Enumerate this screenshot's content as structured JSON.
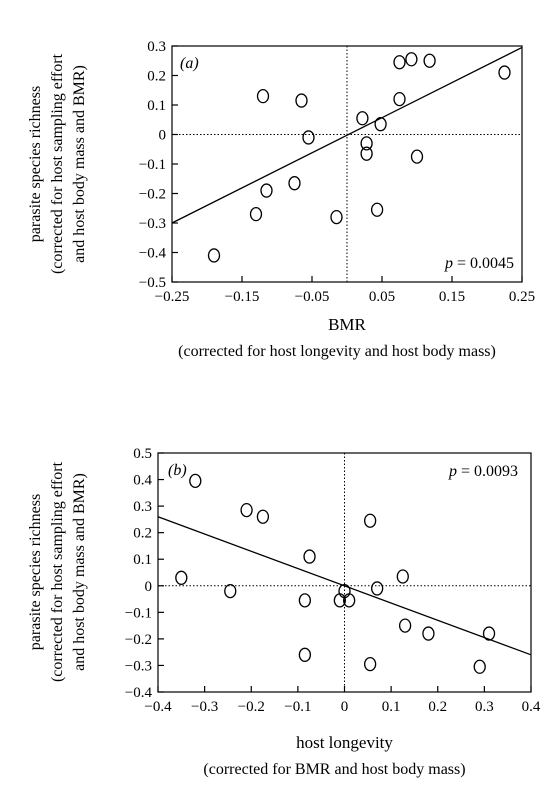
{
  "chart_data": [
    {
      "type": "scatter",
      "panel_label": "(a)",
      "p_label": "p",
      "p_value": "= 0.0045",
      "ylabel_lines": [
        "parasite species richness",
        "(corrected for host sampling effort",
        "and host body mass and BMR)"
      ],
      "xlabel": "BMR",
      "xlabel_sub": "(corrected for host longevity and host body mass)",
      "xlim": [
        -0.25,
        0.25
      ],
      "ylim": [
        -0.5,
        0.3
      ],
      "xticks": [
        -0.25,
        -0.15,
        -0.05,
        0.05,
        0.15,
        0.25
      ],
      "xtick_labels": [
        "−0.25",
        "−0.15",
        "−0.05",
        "0.05",
        "0.15",
        "0.25"
      ],
      "yticks": [
        0.3,
        0.2,
        0.1,
        0,
        -0.1,
        -0.2,
        -0.3,
        -0.4,
        -0.5
      ],
      "ytick_labels": [
        "0.3",
        "0.2",
        "0.1",
        "0",
        "−0.1",
        "−0.2",
        "−0.3",
        "−0.4",
        "−0.5"
      ],
      "x_ref": 0,
      "y_ref": 0,
      "fit_line": {
        "x": [
          -0.25,
          0.25
        ],
        "y": [
          -0.3,
          0.295
        ]
      },
      "points": [
        {
          "x": -0.19,
          "y": -0.41
        },
        {
          "x": -0.13,
          "y": -0.27
        },
        {
          "x": -0.12,
          "y": 0.13
        },
        {
          "x": -0.115,
          "y": -0.19
        },
        {
          "x": -0.075,
          "y": -0.165
        },
        {
          "x": -0.065,
          "y": 0.115
        },
        {
          "x": -0.055,
          "y": -0.01
        },
        {
          "x": -0.015,
          "y": -0.28
        },
        {
          "x": 0.022,
          "y": 0.055
        },
        {
          "x": 0.028,
          "y": -0.03
        },
        {
          "x": 0.028,
          "y": -0.065
        },
        {
          "x": 0.043,
          "y": -0.255
        },
        {
          "x": 0.048,
          "y": 0.035
        },
        {
          "x": 0.075,
          "y": 0.245
        },
        {
          "x": 0.075,
          "y": 0.12
        },
        {
          "x": 0.092,
          "y": 0.255
        },
        {
          "x": 0.1,
          "y": -0.075
        },
        {
          "x": 0.118,
          "y": 0.25
        },
        {
          "x": 0.225,
          "y": 0.21
        }
      ]
    },
    {
      "type": "scatter",
      "panel_label": "(b)",
      "p_label": "p",
      "p_value": "= 0.0093",
      "ylabel_lines": [
        "parasite species richness",
        "(corrected for host sampling effort",
        "and host body mass and BMR)"
      ],
      "xlabel": "host longevity",
      "xlabel_sub": "(corrected for BMR and host body mass)",
      "xlim": [
        -0.4,
        0.4
      ],
      "ylim": [
        -0.4,
        0.5
      ],
      "xticks": [
        -0.4,
        -0.3,
        -0.2,
        -0.1,
        0,
        0.1,
        0.2,
        0.3,
        0.4
      ],
      "xtick_labels": [
        "−0.4",
        "−0.3",
        "−0.2",
        "−0.1",
        "0",
        "0.1",
        "0.2",
        "0.3",
        "0.4"
      ],
      "yticks": [
        0.5,
        0.4,
        0.3,
        0.2,
        0.1,
        0,
        -0.1,
        -0.2,
        -0.3,
        -0.4
      ],
      "ytick_labels": [
        "0.5",
        "0.4",
        "0.3",
        "0.2",
        "0.1",
        "0",
        "−0.1",
        "−0.2",
        "−0.3",
        "−0.4"
      ],
      "x_ref": 0,
      "y_ref": 0,
      "fit_line": {
        "x": [
          -0.4,
          0.4
        ],
        "y": [
          0.26,
          -0.26
        ]
      },
      "points": [
        {
          "x": -0.32,
          "y": 0.395
        },
        {
          "x": -0.35,
          "y": 0.03
        },
        {
          "x": -0.245,
          "y": -0.02
        },
        {
          "x": -0.21,
          "y": 0.285
        },
        {
          "x": -0.175,
          "y": 0.26
        },
        {
          "x": -0.075,
          "y": 0.11
        },
        {
          "x": -0.085,
          "y": -0.055
        },
        {
          "x": -0.085,
          "y": -0.26
        },
        {
          "x": -0.01,
          "y": -0.055
        },
        {
          "x": 0.0,
          "y": -0.02
        },
        {
          "x": 0.01,
          "y": -0.055
        },
        {
          "x": 0.055,
          "y": 0.245
        },
        {
          "x": 0.055,
          "y": -0.295
        },
        {
          "x": 0.07,
          "y": -0.01
        },
        {
          "x": 0.125,
          "y": 0.035
        },
        {
          "x": 0.13,
          "y": -0.15
        },
        {
          "x": 0.18,
          "y": -0.18
        },
        {
          "x": 0.29,
          "y": -0.305
        },
        {
          "x": 0.31,
          "y": -0.18
        }
      ]
    }
  ]
}
